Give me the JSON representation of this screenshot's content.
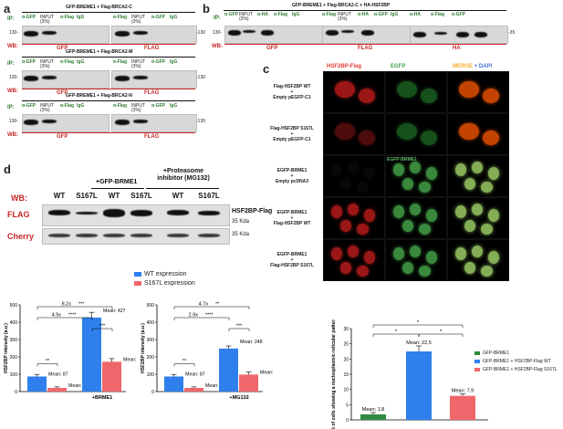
{
  "panels": {
    "a": "a",
    "b": "b",
    "c": "c",
    "d": "d"
  },
  "panel_a": {
    "rows": [
      {
        "title": "GFP-BREME1 + Flag-BRCA2-C",
        "ip_label": "IP:",
        "lanes": [
          "α-GFP",
          "INPUT (3%)",
          "α-Flag",
          "IgG",
          "α-Flag",
          "INPUT (3%)",
          "α-GFP",
          "IgG"
        ],
        "wb_label": "WB:",
        "wb_left": "GFP",
        "wb_right": "FLAG",
        "marker_left": "130-",
        "marker_right": "-130"
      },
      {
        "title": "GFP-BREME1 + Flag-BRCA2-M",
        "ip_label": "IP:",
        "lanes": [
          "α-GFP",
          "INPUT (3%)",
          "α-Flag",
          "IgG",
          "α-Flag",
          "INPUT (3%)",
          "α-GFP",
          "IgG"
        ],
        "wb_label": "WB:",
        "wb_left": "GFP",
        "wb_right": "FLAG",
        "marker_left": "130-",
        "marker_right": "-130"
      },
      {
        "title": "GFP-BREME1 + Flag-BRCA2-N",
        "ip_label": "IP:",
        "lanes": [
          "α-GFP",
          "INPUT (3%)",
          "α-Flag",
          "IgG",
          "α-Flag",
          "INPUT (3%)",
          "α-GFP",
          "IgG"
        ],
        "wb_label": "WB:",
        "wb_left": "GFP",
        "wb_right": "FLAG",
        "marker_left": "130-",
        "marker_right": "-130"
      }
    ]
  },
  "panel_b": {
    "title": "GFP-BREME1 + Flag-BRCA2-C + HA-HSF2BP",
    "ip_label": "IP:",
    "lanes": [
      "α-GFP",
      "INPUT (3%)",
      "α-HA",
      "α-Flag",
      "IgG",
      "α-Flag",
      "INPUT (3%)",
      "α-HA",
      "α-GFP",
      "IgG",
      "α-HA",
      "α-Flag",
      "α-GFP"
    ],
    "wb_label": "WB:",
    "wb_groups": [
      "GFP",
      "FLAG",
      "HA"
    ],
    "marker_left": "130-",
    "marker_right": "-35"
  },
  "panel_c": {
    "col_headers": [
      "HSF2BP-Flag",
      "EGFP",
      "MERGE",
      "+ DAPI"
    ],
    "overlay_label": "EGFP-BRME1",
    "rows": [
      {
        "l1": "Flag-HSF2BP WT",
        "l2": "+",
        "l3": "Empty pEGFP-C1"
      },
      {
        "l1": "Flag-HSF2BP S167L",
        "l2": "+",
        "l3": "Empty pEGFP-C1"
      },
      {
        "l1": "EGFP-BRME1",
        "l2": "+",
        "l3": "Empty pcDNA3"
      },
      {
        "l1": "EGFP-BRME1",
        "l2": "+",
        "l3": "Flag-HSF2BP WT"
      },
      {
        "l1": "EGFP-BRME1",
        "l2": "+",
        "l3": "Flag-HSF2BP S167L"
      }
    ]
  },
  "panel_d": {
    "wb_label": "WB:",
    "group_headers": [
      "+GFP-BRME1",
      "+Proteasome inhibitor (MG132)"
    ],
    "lanes": [
      "WT",
      "S167L",
      "WT",
      "S167L",
      "WT",
      "S167L"
    ],
    "blot_rows": [
      "FLAG",
      "Cherry"
    ],
    "right_labels": [
      "HSF2BP-Flag",
      "35 Kda",
      "35 Kda"
    ]
  },
  "colors": {
    "wt": "#2f80ed",
    "s167l": "#f0676b",
    "brme1": "#2e8b3e",
    "red_label": "#c62828",
    "green_label": "#2e7d32"
  },
  "chart_data": [
    {
      "type": "bar",
      "ylabel": "HSF2BP intensity (a.u.)",
      "categories": [
        "",
        "+BRME1"
      ],
      "series": [
        {
          "name": "WT expression",
          "values": [
            87,
            427
          ],
          "errors": [
            12,
            30
          ]
        },
        {
          "name": "S167L expression",
          "values": [
            21,
            172
          ],
          "errors": [
            6,
            18
          ]
        }
      ],
      "mean_labels": [
        "Mean: 87",
        "Mean: 21",
        "Mean: 427",
        "Mean: 172"
      ],
      "ylim": [
        0,
        500
      ],
      "yticks": [
        0,
        100,
        200,
        300,
        400,
        500
      ],
      "annotations": [
        "8.2x",
        "***",
        "4.9x",
        "****",
        "***",
        "**"
      ],
      "legend": "top-right"
    },
    {
      "type": "bar",
      "ylabel": "HSF2BP intensity (a.u.)",
      "categories": [
        "",
        "+MG132"
      ],
      "series": [
        {
          "name": "WT expression",
          "values": [
            87,
            248
          ],
          "errors": [
            12,
            15
          ]
        },
        {
          "name": "S167L expression",
          "values": [
            21,
            98
          ],
          "errors": [
            6,
            15
          ]
        }
      ],
      "mean_labels": [
        "Mean: 87",
        "Mean: 21",
        "Mean: 248",
        "Mean: 98"
      ],
      "ylim": [
        0,
        500
      ],
      "yticks": [
        0,
        100,
        200,
        300,
        400,
        500
      ],
      "annotations": [
        "4.7x",
        "**",
        "2.9x",
        "****",
        "***",
        "**"
      ]
    },
    {
      "type": "bar",
      "ylabel": "% of cells showing a nucleoplasmic-reticular pattern",
      "categories": [
        "GFP-BRME1",
        "GFP-BRME1 + HSF2BP-Flag WT",
        "GFP-BRME1 + HSF2BP-Flag S167L"
      ],
      "values": [
        1.8,
        22.5,
        7.9
      ],
      "errors": [
        0.6,
        1.8,
        0.7
      ],
      "mean_labels": [
        "Mean: 1,8",
        "Mean: 22,5",
        "Mean: 7,9"
      ],
      "ylim": [
        0,
        30
      ],
      "yticks": [
        0,
        5,
        10,
        15,
        20,
        25,
        30
      ],
      "annotations": [
        "*",
        "*",
        "*"
      ],
      "legend": "right"
    }
  ]
}
